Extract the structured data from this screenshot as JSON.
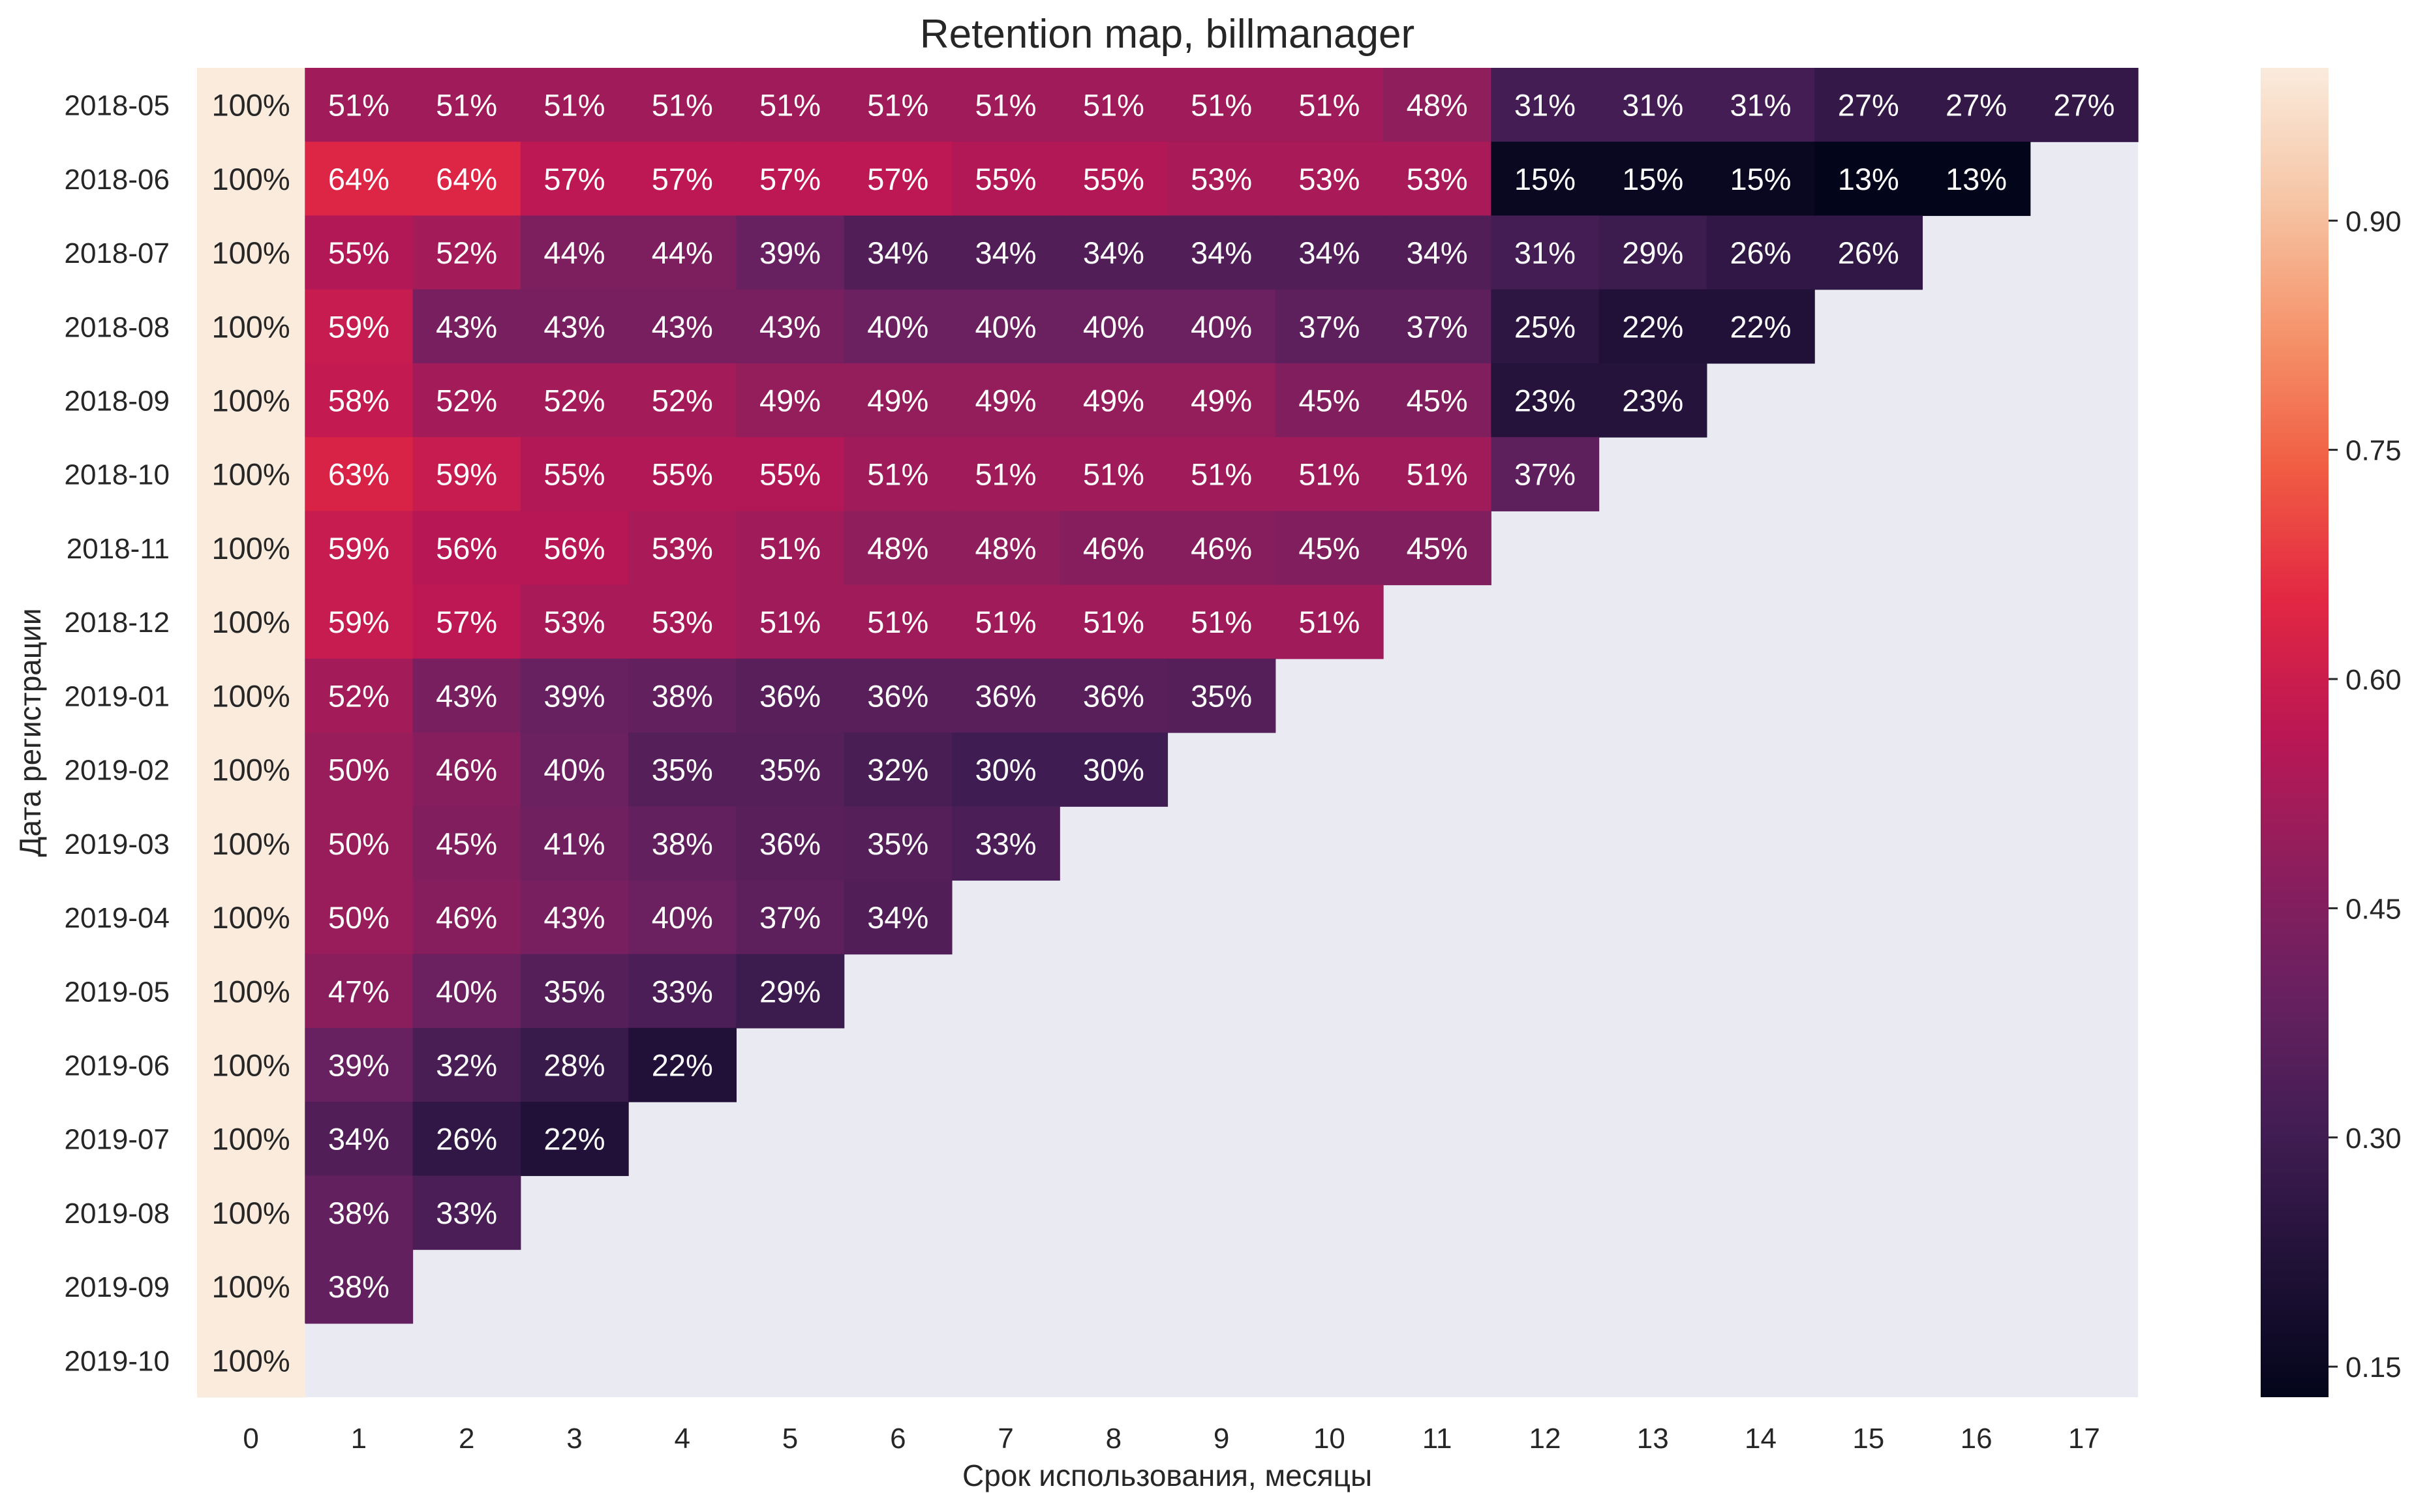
{
  "chart_data": {
    "type": "heatmap",
    "title": "Retention map, billmanager",
    "xlabel": "Срок использования, месяцы",
    "ylabel": "Дата регистрации",
    "x": [
      0,
      1,
      2,
      3,
      4,
      5,
      6,
      7,
      8,
      9,
      10,
      11,
      12,
      13,
      14,
      15,
      16,
      17
    ],
    "y": [
      "2018-05",
      "2018-06",
      "2018-07",
      "2018-08",
      "2018-09",
      "2018-10",
      "2018-11",
      "2018-12",
      "2019-01",
      "2019-02",
      "2019-03",
      "2019-04",
      "2019-05",
      "2019-06",
      "2019-07",
      "2019-08",
      "2019-09",
      "2019-10"
    ],
    "values": [
      [
        1.0,
        0.51,
        0.51,
        0.51,
        0.51,
        0.51,
        0.51,
        0.51,
        0.51,
        0.51,
        0.51,
        0.48,
        0.31,
        0.31,
        0.31,
        0.27,
        0.27,
        0.27
      ],
      [
        1.0,
        0.64,
        0.64,
        0.57,
        0.57,
        0.57,
        0.57,
        0.55,
        0.55,
        0.53,
        0.53,
        0.53,
        0.15,
        0.15,
        0.15,
        0.13,
        0.13,
        null
      ],
      [
        1.0,
        0.55,
        0.52,
        0.44,
        0.44,
        0.39,
        0.34,
        0.34,
        0.34,
        0.34,
        0.34,
        0.34,
        0.31,
        0.29,
        0.26,
        0.26,
        null,
        null
      ],
      [
        1.0,
        0.59,
        0.43,
        0.43,
        0.43,
        0.43,
        0.4,
        0.4,
        0.4,
        0.4,
        0.37,
        0.37,
        0.25,
        0.22,
        0.22,
        null,
        null,
        null
      ],
      [
        1.0,
        0.58,
        0.52,
        0.52,
        0.52,
        0.49,
        0.49,
        0.49,
        0.49,
        0.49,
        0.45,
        0.45,
        0.23,
        0.23,
        null,
        null,
        null,
        null
      ],
      [
        1.0,
        0.63,
        0.59,
        0.55,
        0.55,
        0.55,
        0.51,
        0.51,
        0.51,
        0.51,
        0.51,
        0.51,
        0.37,
        null,
        null,
        null,
        null,
        null
      ],
      [
        1.0,
        0.59,
        0.56,
        0.56,
        0.53,
        0.51,
        0.48,
        0.48,
        0.46,
        0.46,
        0.45,
        0.45,
        null,
        null,
        null,
        null,
        null,
        null
      ],
      [
        1.0,
        0.59,
        0.57,
        0.53,
        0.53,
        0.51,
        0.51,
        0.51,
        0.51,
        0.51,
        0.51,
        null,
        null,
        null,
        null,
        null,
        null,
        null
      ],
      [
        1.0,
        0.52,
        0.43,
        0.39,
        0.38,
        0.36,
        0.36,
        0.36,
        0.36,
        0.35,
        null,
        null,
        null,
        null,
        null,
        null,
        null,
        null
      ],
      [
        1.0,
        0.5,
        0.46,
        0.4,
        0.35,
        0.35,
        0.32,
        0.3,
        0.3,
        null,
        null,
        null,
        null,
        null,
        null,
        null,
        null,
        null
      ],
      [
        1.0,
        0.5,
        0.45,
        0.41,
        0.38,
        0.36,
        0.35,
        0.33,
        null,
        null,
        null,
        null,
        null,
        null,
        null,
        null,
        null,
        null
      ],
      [
        1.0,
        0.5,
        0.46,
        0.43,
        0.4,
        0.37,
        0.34,
        null,
        null,
        null,
        null,
        null,
        null,
        null,
        null,
        null,
        null,
        null
      ],
      [
        1.0,
        0.47,
        0.4,
        0.35,
        0.33,
        0.29,
        null,
        null,
        null,
        null,
        null,
        null,
        null,
        null,
        null,
        null,
        null,
        null
      ],
      [
        1.0,
        0.39,
        0.32,
        0.28,
        0.22,
        null,
        null,
        null,
        null,
        null,
        null,
        null,
        null,
        null,
        null,
        null,
        null,
        null
      ],
      [
        1.0,
        0.34,
        0.26,
        0.22,
        null,
        null,
        null,
        null,
        null,
        null,
        null,
        null,
        null,
        null,
        null,
        null,
        null,
        null
      ],
      [
        1.0,
        0.38,
        0.33,
        null,
        null,
        null,
        null,
        null,
        null,
        null,
        null,
        null,
        null,
        null,
        null,
        null,
        null,
        null
      ],
      [
        1.0,
        0.38,
        null,
        null,
        null,
        null,
        null,
        null,
        null,
        null,
        null,
        null,
        null,
        null,
        null,
        null,
        null,
        null
      ],
      [
        1.0,
        null,
        null,
        null,
        null,
        null,
        null,
        null,
        null,
        null,
        null,
        null,
        null,
        null,
        null,
        null,
        null,
        null
      ]
    ],
    "cell_label_format": "percent",
    "colorbar": {
      "range": [
        0.13,
        1.0
      ],
      "ticks": [
        0.15,
        0.3,
        0.45,
        0.6,
        0.75,
        0.9
      ],
      "tick_labels": [
        "0.15",
        "0.30",
        "0.45",
        "0.60",
        "0.75",
        "0.90"
      ],
      "colormap": "rocket"
    },
    "colors": {
      "missing_background": "#EAEAF2",
      "text_light": "#ffffff",
      "text_dark": "#262626",
      "axis_text": "#262626"
    }
  }
}
